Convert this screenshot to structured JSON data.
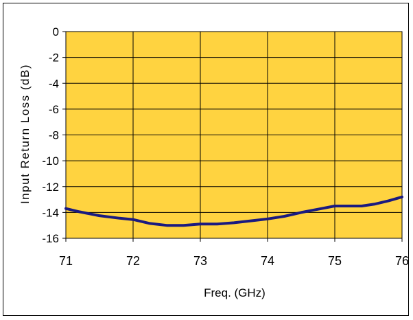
{
  "chart_data": {
    "type": "line",
    "title": "",
    "xlabel": "Freq. (GHz)",
    "ylabel": "Input Return Loss (dB)",
    "xlim": [
      71,
      76
    ],
    "ylim": [
      -16,
      0
    ],
    "x_ticks": [
      "71",
      "72",
      "73",
      "74",
      "75",
      "76"
    ],
    "y_ticks": [
      "0",
      "-2",
      "-4",
      "-6",
      "-8",
      "-10",
      "-12",
      "-14",
      "-16"
    ],
    "grid": true,
    "legend": "none",
    "plot_background": "#FFD340",
    "line_color": "#1A1A80",
    "series": [
      {
        "x": [
          71.0,
          71.2,
          71.5,
          71.8,
          72.0,
          72.25,
          72.5,
          72.75,
          73.0,
          73.25,
          73.5,
          73.75,
          74.0,
          74.25,
          74.5,
          74.75,
          75.0,
          75.2,
          75.4,
          75.6,
          75.8,
          76.0
        ],
        "values": [
          -13.7,
          -13.95,
          -14.25,
          -14.45,
          -14.55,
          -14.85,
          -15.0,
          -15.0,
          -14.9,
          -14.9,
          -14.8,
          -14.65,
          -14.5,
          -14.3,
          -14.0,
          -13.75,
          -13.5,
          -13.5,
          -13.5,
          -13.35,
          -13.1,
          -12.8
        ]
      }
    ]
  }
}
